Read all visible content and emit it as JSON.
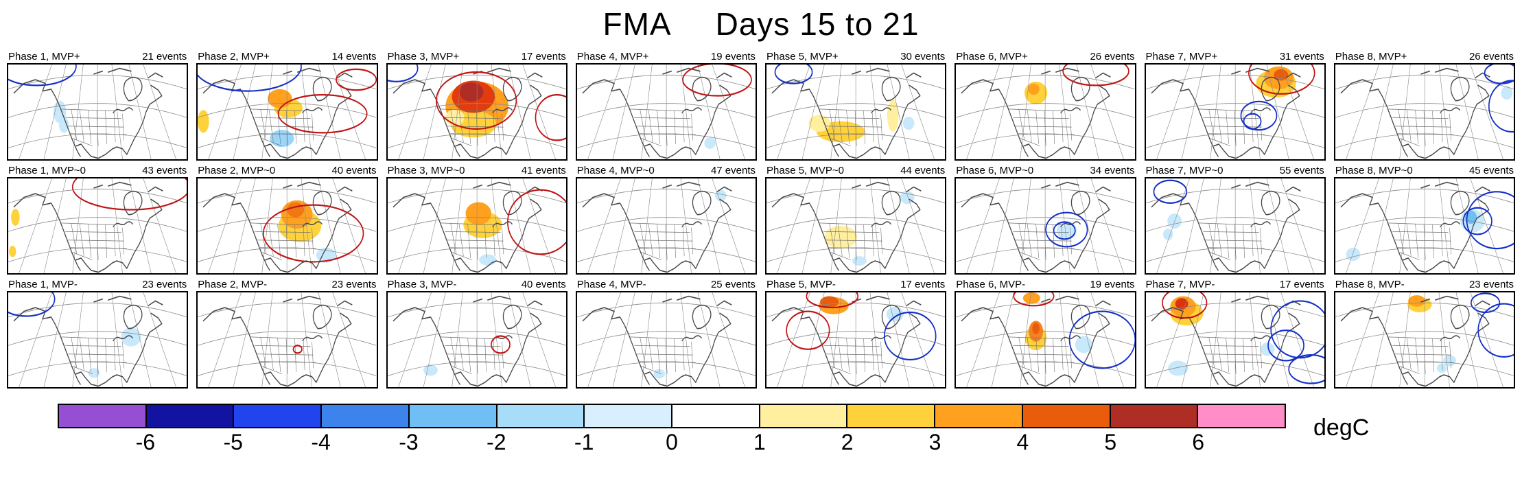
{
  "title": {
    "season": "FMA",
    "range": "Days 15 to 21"
  },
  "contour_colors": {
    "warm": "#C11414",
    "cool": "#1430C8"
  },
  "colorbar": {
    "unit": "degC",
    "ticks": [
      "-6",
      "-5",
      "-4",
      "-3",
      "-2",
      "-1",
      "0",
      "1",
      "2",
      "3",
      "4",
      "5",
      "6"
    ],
    "colors": [
      "#964FD2",
      "#1213A0",
      "#2244EE",
      "#3C84EC",
      "#6FBFF5",
      "#A8DDFA",
      "#D8F0FE",
      "#FFFFFF",
      "#FFEF9E",
      "#FFD23B",
      "#FFA01E",
      "#E85C0C",
      "#AE2D24",
      "#FF8DC7"
    ]
  },
  "chart_data": {
    "type": "heatmap",
    "title": "FMA Days 15 to 21",
    "rows": [
      "MVP+",
      "MVP~0",
      "MVP-"
    ],
    "columns": [
      "Phase 1",
      "Phase 2",
      "Phase 3",
      "Phase 4",
      "Phase 5",
      "Phase 6",
      "Phase 7",
      "Phase 8"
    ],
    "events_per_panel": [
      [
        21,
        14,
        17,
        19,
        30,
        26,
        31,
        26
      ],
      [
        43,
        40,
        41,
        47,
        44,
        34,
        55,
        45
      ],
      [
        23,
        23,
        40,
        25,
        17,
        19,
        17,
        23
      ]
    ],
    "colorbar": {
      "label": "degC",
      "tick_values": [
        -6,
        -5,
        -4,
        -3,
        -2,
        -1,
        0,
        1,
        2,
        3,
        4,
        5,
        6
      ]
    }
  },
  "rows": [
    {
      "name": "MVP+",
      "panels": [
        {
          "label": "Phase 1, MVP+",
          "events": "21 events",
          "fills": [
            [
              72,
              50,
              9,
              12,
              "#C8E9FC"
            ],
            [
              78,
              64,
              7,
              8,
              "#C8E9FC"
            ]
          ],
          "contours": [
            [
              40,
              2,
              55,
              20,
              "B"
            ]
          ]
        },
        {
          "label": "Phase 2, MVP+",
          "events": "14 events",
          "fills": [
            [
              127,
              46,
              20,
              10,
              "#FFD23B"
            ],
            [
              115,
              36,
              17,
              10,
              "#FFA01E"
            ],
            [
              8,
              60,
              8,
              12,
              "#FFD23B"
            ],
            [
              118,
              78,
              17,
              9,
              "#9AD6FA"
            ]
          ],
          "contours": [
            [
              70,
              2,
              75,
              26,
              "B"
            ],
            [
              175,
              52,
              62,
              20,
              "R"
            ],
            [
              222,
              16,
              28,
              11,
              "R"
            ]
          ]
        },
        {
          "label": "Phase 3, MVP+",
          "events": "17 events",
          "fills": [
            [
              125,
              44,
              44,
              26,
              "#FFA01E"
            ],
            [
              120,
              63,
              32,
              14,
              "#FFD23B"
            ],
            [
              94,
              56,
              13,
              9,
              "#FFEF9E"
            ],
            [
              120,
              34,
              30,
              17,
              "#E23B0E"
            ],
            [
              117,
              29,
              17,
              10,
              "#AE2D24"
            ]
          ],
          "contours": [
            [
              124,
              38,
              56,
              30,
              "R"
            ],
            [
              237,
              56,
              30,
              24,
              "R"
            ],
            [
              12,
              4,
              30,
              14,
              "B"
            ]
          ]
        },
        {
          "label": "Phase 4, MVP+",
          "events": "19 events",
          "fills": [
            [
              186,
              83,
              8,
              6,
              "#C8E9FC"
            ]
          ],
          "contours": [
            [
              196,
              16,
              48,
              17,
              "R"
            ]
          ]
        },
        {
          "label": "Phase 5, MVP+",
          "events": "30 events",
          "fills": [
            [
              104,
              71,
              34,
              11,
              "#FFD23B"
            ],
            [
              74,
              62,
              15,
              9,
              "#FFEF9E"
            ],
            [
              177,
              54,
              8,
              17,
              "#FFEF9E"
            ],
            [
              199,
              62,
              8,
              7,
              "#C8E9FC"
            ]
          ],
          "contours": [
            [
              38,
              8,
              26,
              12,
              "B"
            ]
          ]
        },
        {
          "label": "Phase 6, MVP+",
          "events": "26 events",
          "fills": [
            [
              112,
              30,
              16,
              12,
              "#FFD23B"
            ],
            [
              109,
              26,
              8,
              6,
              "#FFA01E"
            ]
          ],
          "contours": [
            [
              196,
              7,
              46,
              15,
              "R"
            ]
          ]
        },
        {
          "label": "Phase 7, MVP+",
          "events": "31 events",
          "fills": [
            [
              182,
              20,
              28,
              15,
              "#FFD23B"
            ],
            [
              186,
              14,
              21,
              12,
              "#FFA01E"
            ],
            [
              189,
              11,
              10,
              6,
              "#E85C0C"
            ]
          ],
          "contours": [
            [
              190,
              9,
              46,
              22,
              "R"
            ],
            [
              158,
              54,
              25,
              15,
              "B"
            ],
            [
              149,
              60,
              12,
              8,
              "B"
            ]
          ]
        },
        {
          "label": "Phase 8, MVP+",
          "events": "26 events",
          "fills": [
            [
              240,
              30,
              8,
              7,
              "#C8E9FC"
            ]
          ],
          "contours": [
            [
              247,
              44,
              32,
              27,
              "B"
            ],
            [
              233,
              9,
              24,
              11,
              "B"
            ]
          ]
        }
      ]
    },
    {
      "name": "MVP~0",
      "panels": [
        {
          "label": "Phase 1, MVP~0",
          "events": "43 events",
          "fills": [
            [
              10,
              41,
              6,
              9,
              "#FFD23B"
            ],
            [
              6,
              77,
              5,
              6,
              "#FFD23B"
            ]
          ],
          "contours": [
            [
              172,
              9,
              82,
              24,
              "R"
            ]
          ]
        },
        {
          "label": "Phase 2, MVP~0",
          "events": "40 events",
          "fills": [
            [
              143,
              50,
              30,
              17,
              "#FFD23B"
            ],
            [
              139,
              38,
              22,
              15,
              "#FFA01E"
            ],
            [
              137,
              33,
              12,
              8,
              "#F07714"
            ],
            [
              180,
              81,
              14,
              8,
              "#C8E9FC"
            ]
          ],
          "contours": [
            [
              162,
              58,
              70,
              30,
              "R"
            ]
          ]
        },
        {
          "label": "Phase 3, MVP~0",
          "events": "41 events",
          "fills": [
            [
              133,
              49,
              27,
              14,
              "#FFD23B"
            ],
            [
              127,
              37,
              18,
              12,
              "#FFA01E"
            ],
            [
              140,
              86,
              12,
              6,
              "#C8E9FC"
            ]
          ],
          "contours": [
            [
              214,
              46,
              46,
              34,
              "R"
            ]
          ]
        },
        {
          "label": "Phase 4, MVP~0",
          "events": "47 events",
          "fills": [
            [
              201,
              18,
              8,
              6,
              "#C8E9FC"
            ]
          ],
          "contours": []
        },
        {
          "label": "Phase 5, MVP~0",
          "events": "44 events",
          "fills": [
            [
              104,
              62,
              23,
              12,
              "#FFEF9E"
            ],
            [
              197,
              20,
              10,
              7,
              "#C8E9FC"
            ],
            [
              130,
              87,
              10,
              5,
              "#C8E9FC"
            ]
          ],
          "contours": []
        },
        {
          "label": "Phase 6, MVP~0",
          "events": "34 events",
          "fills": [
            [
              155,
              55,
              14,
              10,
              "#C8E9FC"
            ]
          ],
          "contours": [
            [
              155,
              54,
              29,
              18,
              "B"
            ],
            [
              152,
              55,
              15,
              9,
              "B"
            ]
          ]
        },
        {
          "label": "Phase 7, MVP~0",
          "events": "55 events",
          "fills": [
            [
              40,
              45,
              10,
              8,
              "#C8E9FC"
            ],
            [
              31,
              59,
              7,
              6,
              "#C8E9FC"
            ]
          ],
          "contours": [
            [
              34,
              14,
              23,
              12,
              "B"
            ]
          ]
        },
        {
          "label": "Phase 8, MVP~0",
          "events": "45 events",
          "fills": [
            [
              192,
              45,
              17,
              12,
              "#C8E9FC"
            ],
            [
              190,
              41,
              8,
              7,
              "#6FBFF5"
            ],
            [
              25,
              80,
              10,
              7,
              "#C8E9FC"
            ]
          ],
          "contours": [
            [
              226,
              44,
              42,
              30,
              "B"
            ],
            [
              199,
              45,
              20,
              14,
              "B"
            ]
          ]
        }
      ]
    },
    {
      "name": "MVP-",
      "panels": [
        {
          "label": "Phase 1, MVP-",
          "events": "23 events",
          "fills": [
            [
              172,
              47,
              14,
              10,
              "#C8E9FC"
            ],
            [
              120,
              85,
              8,
              5,
              "#C8E9FC"
            ]
          ],
          "contours": [
            [
              25,
              7,
              40,
              18,
              "B"
            ]
          ]
        },
        {
          "label": "Phase 2, MVP-",
          "events": "23 events",
          "fills": [],
          "contours": [
            [
              140,
              60,
              6,
              4,
              "R"
            ]
          ]
        },
        {
          "label": "Phase 3, MVP-",
          "events": "40 events",
          "fills": [
            [
              60,
              82,
              10,
              6,
              "#C8E9FC"
            ]
          ],
          "contours": [
            [
              158,
              55,
              13,
              9,
              "R"
            ]
          ]
        },
        {
          "label": "Phase 4, MVP-",
          "events": "25 events",
          "fills": [
            [
              115,
              86,
              8,
              5,
              "#C8E9FC"
            ]
          ],
          "contours": []
        },
        {
          "label": "Phase 5, MVP-",
          "events": "17 events",
          "fills": [
            [
              94,
              14,
              21,
              9,
              "#FFA01E"
            ],
            [
              88,
              10,
              13,
              6,
              "#E85C0C"
            ],
            [
              180,
              23,
              12,
              8,
              "#C8E9FC"
            ]
          ],
          "contours": [
            [
              58,
              40,
              30,
              20,
              "R"
            ],
            [
              201,
              46,
              36,
              25,
              "B"
            ],
            [
              92,
              4,
              36,
              12,
              "R"
            ]
          ]
        },
        {
          "label": "Phase 6, MVP-",
          "events": "19 events",
          "fills": [
            [
              112,
              48,
              15,
              13,
              "#FFD23B"
            ],
            [
              112,
              41,
              10,
              11,
              "#F58220"
            ],
            [
              112,
              38,
              5,
              6,
              "#E85C0C"
            ],
            [
              106,
              6,
              12,
              6,
              "#FFA01E"
            ],
            [
              179,
              55,
              12,
              9,
              "#C8E9FC"
            ]
          ],
          "contours": [
            [
              205,
              50,
              46,
              30,
              "B"
            ],
            [
              109,
              4,
              28,
              10,
              "R"
            ]
          ]
        },
        {
          "label": "Phase 7, MVP-",
          "events": "17 events",
          "fills": [
            [
              57,
              22,
              23,
              13,
              "#FFD23B"
            ],
            [
              52,
              15,
              18,
              11,
              "#FFA01E"
            ],
            [
              50,
              12,
              9,
              6,
              "#D9340E"
            ],
            [
              45,
              80,
              14,
              8,
              "#C8E9FC"
            ],
            [
              170,
              60,
              10,
              7,
              "#C8E9FC"
            ]
          ],
          "contours": [
            [
              54,
              11,
              31,
              16,
              "R"
            ],
            [
              216,
              39,
              41,
              30,
              "B"
            ],
            [
              196,
              56,
              25,
              16,
              "B"
            ],
            [
              231,
              81,
              31,
              15,
              "B"
            ]
          ]
        },
        {
          "label": "Phase 8, MVP-",
          "events": "23 events",
          "fills": [
            [
              118,
              13,
              17,
              8,
              "#FFD23B"
            ],
            [
              114,
              9,
              12,
              6,
              "#FFA01E"
            ],
            [
              160,
              72,
              9,
              6,
              "#C8E9FC"
            ],
            [
              149,
              80,
              7,
              5,
              "#C8E9FC"
            ]
          ],
          "contours": [
            [
              236,
              40,
              36,
              28,
              "B"
            ],
            [
              210,
              11,
              20,
              10,
              "B"
            ]
          ]
        }
      ]
    }
  ]
}
